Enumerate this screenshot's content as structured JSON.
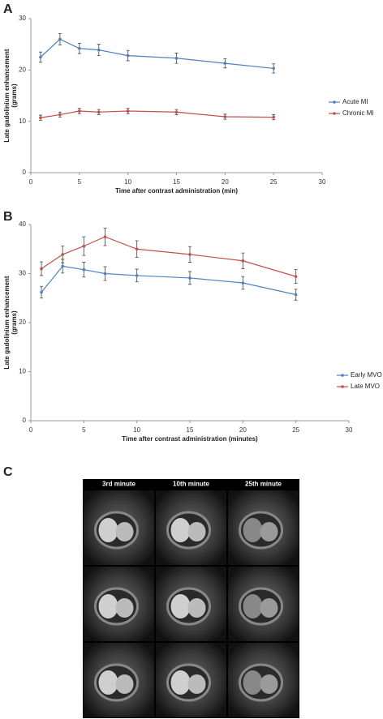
{
  "chart_data": [
    {
      "type": "line",
      "panel_label": "A",
      "x_label": "Time after contrast administration (min)",
      "y_label": [
        "Late gadolinium enhancement",
        "(grams)"
      ],
      "xlim": [
        0,
        30
      ],
      "xticks": [
        0,
        5,
        10,
        15,
        20,
        25,
        30
      ],
      "ylim": [
        0,
        30
      ],
      "yticks": [
        0,
        10,
        20,
        30
      ],
      "legend": "right",
      "x": [
        1,
        3,
        5,
        7,
        10,
        15,
        20,
        25
      ],
      "series": [
        {
          "name": "Acute MI",
          "color": "#4f81bd",
          "values": [
            22.5,
            26,
            24.2,
            23.9,
            22.8,
            22.3,
            21.3,
            20.3
          ],
          "errors": [
            1.0,
            1.1,
            1.0,
            1.1,
            1.0,
            1.0,
            0.9,
            0.9
          ]
        },
        {
          "name": "Chronic MI",
          "color": "#c0504d",
          "values": [
            10.7,
            11.3,
            12,
            11.8,
            12,
            11.8,
            10.9,
            10.8
          ],
          "errors": [
            0.5,
            0.5,
            0.5,
            0.5,
            0.5,
            0.5,
            0.5,
            0.5
          ]
        }
      ]
    },
    {
      "type": "line",
      "panel_label": "B",
      "x_label": "Time after contrast administration (minutes)",
      "y_label": [
        "Late gadolinium enhancement",
        "(grams)"
      ],
      "xlim": [
        0,
        30
      ],
      "xticks": [
        0,
        5,
        10,
        15,
        20,
        25,
        30
      ],
      "ylim": [
        0,
        40
      ],
      "yticks": [
        0,
        10,
        20,
        30,
        40
      ],
      "legend": "right",
      "x": [
        1,
        3,
        5,
        7,
        10,
        15,
        20,
        25
      ],
      "series": [
        {
          "name": "Early MVO",
          "color": "#4f81bd",
          "values": [
            26.2,
            31.5,
            30.8,
            30,
            29.6,
            29.1,
            28.1,
            25.7
          ],
          "errors": [
            1.2,
            1.4,
            1.5,
            1.4,
            1.3,
            1.3,
            1.3,
            1.1
          ]
        },
        {
          "name": "Late MVO",
          "color": "#c0504d",
          "values": [
            31,
            33.9,
            35.6,
            37.5,
            35,
            33.9,
            32.6,
            29.4
          ],
          "errors": [
            1.4,
            1.7,
            1.9,
            1.8,
            1.7,
            1.6,
            1.6,
            1.4
          ]
        }
      ]
    }
  ],
  "image_panel": {
    "panel_label": "C",
    "columns": [
      "3rd minute",
      "10th minute",
      "25th minute"
    ]
  }
}
